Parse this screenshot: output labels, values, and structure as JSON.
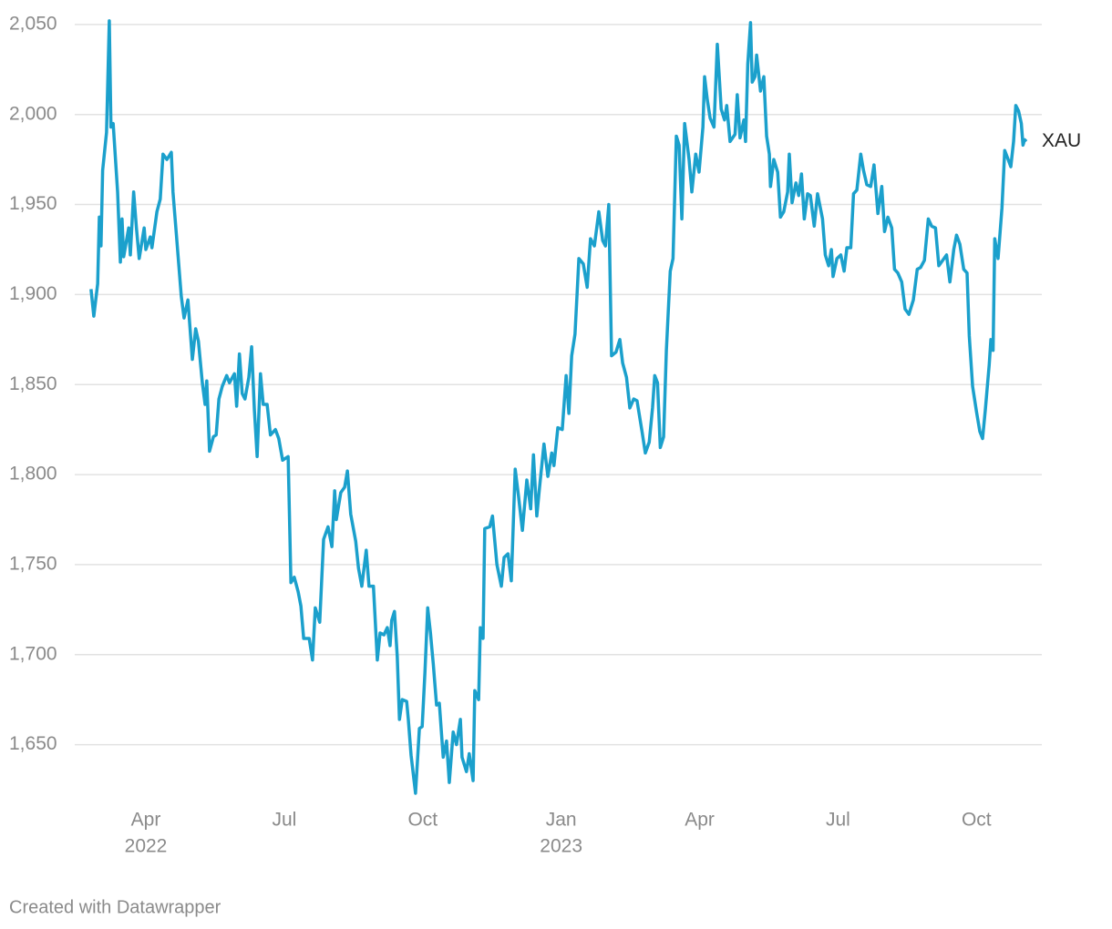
{
  "chart_data": {
    "type": "line",
    "x": [
      2022.151,
      2022.156,
      2022.163,
      2022.166,
      2022.169,
      2022.172,
      2022.179,
      2022.184,
      2022.187,
      2022.191,
      2022.199,
      2022.204,
      2022.207,
      2022.21,
      2022.219,
      2022.222,
      2022.228,
      2022.233,
      2022.238,
      2022.247,
      2022.25,
      2022.258,
      2022.261,
      2022.27,
      2022.276,
      2022.281,
      2022.288,
      2022.296,
      2022.299,
      2022.306,
      2022.314,
      2022.319,
      2022.326,
      2022.334,
      2022.34,
      2022.345,
      2022.352,
      2022.357,
      2022.36,
      2022.365,
      2022.372,
      2022.377,
      2022.382,
      2022.388,
      2022.396,
      2022.401,
      2022.41,
      2022.414,
      2022.419,
      2022.424,
      2022.429,
      2022.436,
      2022.441,
      2022.446,
      2022.451,
      2022.457,
      2022.462,
      2022.469,
      2022.475,
      2022.484,
      2022.49,
      2022.497,
      2022.507,
      2022.512,
      2022.518,
      2022.525,
      2022.53,
      2022.535,
      2022.545,
      2022.551,
      2022.556,
      2022.564,
      2022.571,
      2022.579,
      2022.586,
      2022.591,
      2022.594,
      2022.602,
      2022.609,
      2022.614,
      2022.62,
      2022.629,
      2022.634,
      2022.64,
      2022.648,
      2022.653,
      2022.661,
      2022.668,
      2022.673,
      2022.68,
      2022.686,
      2022.691,
      2022.694,
      2022.699,
      2022.704,
      2022.708,
      2022.713,
      2022.721,
      2022.724,
      2022.729,
      2022.737,
      2022.744,
      2022.749,
      2022.754,
      2022.759,
      2022.764,
      2022.769,
      2022.775,
      2022.78,
      2022.787,
      2022.793,
      2022.798,
      2022.805,
      2022.811,
      2022.818,
      2022.821,
      2022.829,
      2022.834,
      2022.841,
      2022.844,
      2022.851,
      2022.854,
      2022.859,
      2022.862,
      2022.871,
      2022.876,
      2022.884,
      2022.892,
      2022.897,
      2022.904,
      2022.91,
      2022.917,
      2022.923,
      2022.93,
      2022.938,
      2022.945,
      2022.95,
      2022.956,
      2022.961,
      2022.969,
      2022.976,
      2022.983,
      2022.987,
      2022.994,
      2023.002,
      2023.009,
      2023.014,
      2023.019,
      2023.025,
      2023.032,
      2023.04,
      2023.047,
      2023.053,
      2023.06,
      2023.068,
      2023.075,
      2023.08,
      2023.086,
      2023.091,
      2023.099,
      2023.106,
      2023.111,
      2023.118,
      2023.124,
      2023.131,
      2023.137,
      2023.146,
      2023.152,
      2023.159,
      2023.165,
      2023.169,
      2023.174,
      2023.179,
      2023.185,
      2023.19,
      2023.197,
      2023.202,
      2023.208,
      2023.213,
      2023.218,
      2023.223,
      2023.231,
      2023.236,
      2023.243,
      2023.249,
      2023.256,
      2023.259,
      2023.264,
      2023.269,
      2023.276,
      2023.282,
      2023.289,
      2023.295,
      2023.299,
      2023.305,
      2023.314,
      2023.318,
      2023.323,
      2023.33,
      2023.333,
      2023.337,
      2023.342,
      2023.345,
      2023.35,
      2023.353,
      2023.36,
      2023.366,
      2023.371,
      2023.376,
      2023.378,
      2023.384,
      2023.391,
      2023.396,
      2023.402,
      2023.409,
      2023.412,
      2023.417,
      2023.424,
      2023.429,
      2023.434,
      2023.439,
      2023.445,
      2023.45,
      2023.457,
      2023.463,
      2023.472,
      2023.477,
      2023.483,
      2023.488,
      2023.491,
      2023.498,
      2023.505,
      2023.511,
      2023.516,
      2023.523,
      2023.528,
      2023.534,
      2023.541,
      2023.546,
      2023.552,
      2023.559,
      2023.565,
      2023.572,
      2023.579,
      2023.584,
      2023.59,
      2023.597,
      2023.602,
      2023.608,
      2023.615,
      2023.621,
      2023.628,
      2023.636,
      2023.643,
      2023.649,
      2023.656,
      2023.663,
      2023.669,
      2023.676,
      2023.682,
      2023.689,
      2023.696,
      2023.702,
      2023.709,
      2023.714,
      2023.72,
      2023.727,
      2023.733,
      2023.737,
      2023.743,
      2023.75,
      2023.756,
      2023.761,
      2023.766,
      2023.773,
      2023.776,
      2023.78,
      2023.783,
      2023.789,
      2023.796,
      2023.801,
      2023.806,
      2023.812,
      2023.817,
      2023.821,
      2023.826,
      2023.831,
      2023.834,
      2023.837,
      2023.84
    ],
    "series": [
      {
        "name": "XAU",
        "color": "#1ba0cc",
        "values": [
          1903,
          1888,
          1906,
          1943,
          1927,
          1969,
          1990,
          2052,
          1993,
          1995,
          1957,
          1918,
          1942,
          1921,
          1937,
          1922,
          1957,
          1937,
          1920,
          1937,
          1925,
          1932,
          1926,
          1946,
          1953,
          1978,
          1975,
          1979,
          1957,
          1930,
          1899,
          1887,
          1897,
          1864,
          1881,
          1874,
          1851,
          1839,
          1852,
          1813,
          1821,
          1822,
          1842,
          1849,
          1855,
          1851,
          1856,
          1838,
          1867,
          1845,
          1842,
          1854,
          1871,
          1836,
          1810,
          1856,
          1839,
          1839,
          1822,
          1825,
          1820,
          1808,
          1810,
          1740,
          1743,
          1735,
          1727,
          1709,
          1709,
          1697,
          1726,
          1718,
          1764,
          1771,
          1760,
          1791,
          1775,
          1790,
          1793,
          1802,
          1778,
          1763,
          1748,
          1738,
          1758,
          1738,
          1738,
          1697,
          1712,
          1711,
          1715,
          1705,
          1719,
          1724,
          1699,
          1664,
          1675,
          1674,
          1664,
          1644,
          1623,
          1659,
          1660,
          1690,
          1726,
          1712,
          1695,
          1672,
          1673,
          1643,
          1652,
          1629,
          1657,
          1650,
          1664,
          1643,
          1635,
          1645,
          1630,
          1680,
          1675,
          1715,
          1709,
          1770,
          1771,
          1777,
          1750,
          1738,
          1754,
          1756,
          1741,
          1803,
          1788,
          1769,
          1797,
          1781,
          1811,
          1777,
          1793,
          1817,
          1799,
          1812,
          1805,
          1826,
          1825,
          1855,
          1834,
          1866,
          1878,
          1920,
          1917,
          1904,
          1931,
          1927,
          1946,
          1930,
          1927,
          1950,
          1866,
          1868,
          1875,
          1862,
          1854,
          1837,
          1842,
          1841,
          1824,
          1812,
          1818,
          1837,
          1855,
          1851,
          1815,
          1821,
          1869,
          1913,
          1920,
          1988,
          1983,
          1942,
          1995,
          1975,
          1957,
          1978,
          1968,
          1993,
          2021,
          2008,
          1998,
          1993,
          2039,
          2003,
          1997,
          2005,
          1985,
          1989,
          2011,
          1987,
          1997,
          1985,
          2028,
          2051,
          2018,
          2021,
          2033,
          2013,
          2021,
          1988,
          1978,
          1960,
          1975,
          1968,
          1943,
          1946,
          1957,
          1978,
          1951,
          1962,
          1955,
          1967,
          1942,
          1956,
          1955,
          1938,
          1956,
          1942,
          1922,
          1916,
          1925,
          1910,
          1920,
          1922,
          1913,
          1926,
          1926,
          1956,
          1958,
          1978,
          1969,
          1961,
          1960,
          1972,
          1945,
          1960,
          1935,
          1943,
          1937,
          1914,
          1912,
          1907,
          1892,
          1889,
          1897,
          1914,
          1915,
          1919,
          1942,
          1938,
          1937,
          1916,
          1919,
          1922,
          1907,
          1925,
          1933,
          1928,
          1914,
          1912,
          1877,
          1849,
          1835,
          1824,
          1820,
          1836,
          1861,
          1875,
          1869,
          1931,
          1920,
          1948,
          1980,
          1976,
          1971,
          1985,
          2005,
          2002,
          1995,
          1983,
          1986,
          1985
        ]
      }
    ],
    "xlim": [
      2022.143,
      2023.868
    ],
    "xticks": [
      {
        "value": 2022.25,
        "label": "Apr"
      },
      {
        "value": 2022.5,
        "label": "Jul"
      },
      {
        "value": 2022.75,
        "label": "Oct"
      },
      {
        "value": 2023,
        "label": "Jan"
      },
      {
        "value": 2023.25,
        "label": "Apr"
      },
      {
        "value": 2023.5,
        "label": "Jul"
      },
      {
        "value": 2023.75,
        "label": "Oct"
      }
    ],
    "xtick_years": [
      {
        "value": 2022.25,
        "label": "2022"
      },
      {
        "value": 2023,
        "label": "2023"
      }
    ],
    "ylim": [
      1625,
      2055
    ],
    "yticks": [
      {
        "value": 1650,
        "label": "1,650"
      },
      {
        "value": 1700,
        "label": "1,700"
      },
      {
        "value": 1750,
        "label": "1,750"
      },
      {
        "value": 1800,
        "label": "1,800"
      },
      {
        "value": 1850,
        "label": "1,850"
      },
      {
        "value": 1900,
        "label": "1,900"
      },
      {
        "value": 1950,
        "label": "1,950"
      },
      {
        "value": 2000,
        "label": "2,000"
      },
      {
        "value": 2050,
        "label": "2,050"
      }
    ],
    "grid": true,
    "credit": "Created with Datawrapper"
  }
}
